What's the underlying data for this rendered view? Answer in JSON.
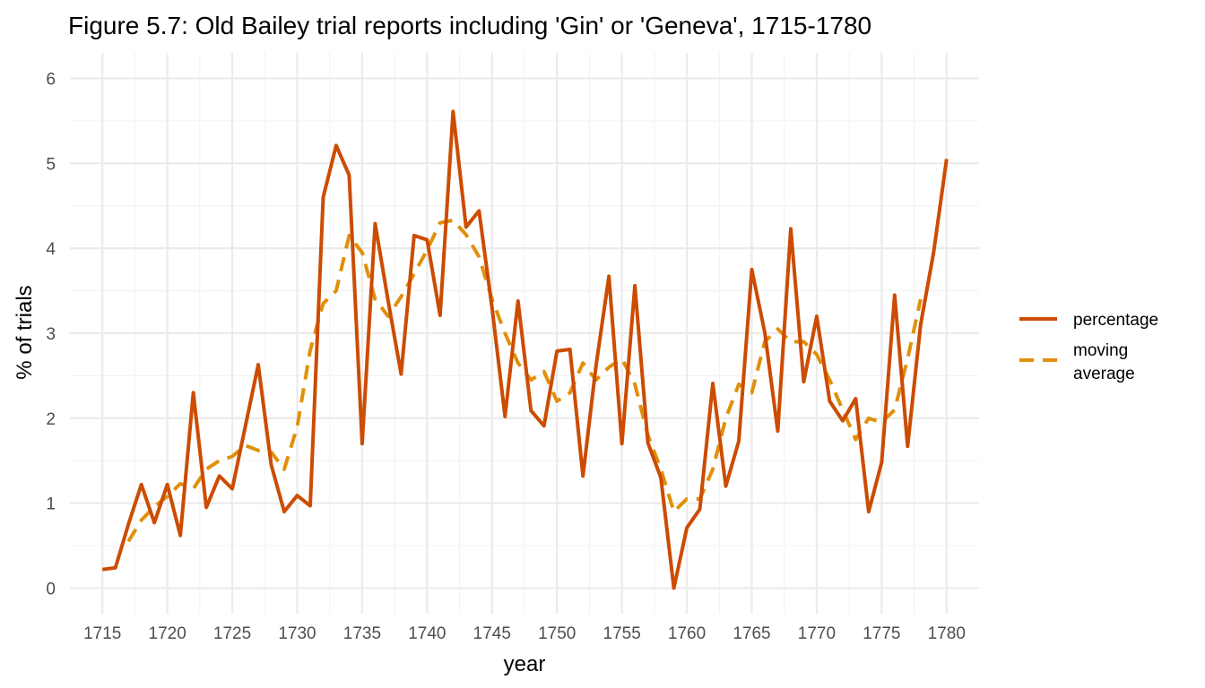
{
  "chart_data": {
    "type": "line",
    "title": "Figure 5.7: Old Bailey trial reports including 'Gin' or 'Geneva', 1715-1780",
    "xlabel": "year",
    "ylabel": "% of trials",
    "xlim": [
      1712.5,
      1782.5
    ],
    "ylim": [
      -0.3,
      6.3
    ],
    "x_ticks": [
      1715,
      1720,
      1725,
      1730,
      1735,
      1740,
      1745,
      1750,
      1755,
      1760,
      1765,
      1770,
      1775,
      1780
    ],
    "y_ticks": [
      0,
      1,
      2,
      3,
      4,
      5,
      6
    ],
    "grid": true,
    "legend_position": "right",
    "colors": {
      "percentage": "#cc4c02",
      "moving_average": "#e0900a"
    },
    "x": [
      1715,
      1716,
      1717,
      1718,
      1719,
      1720,
      1721,
      1722,
      1723,
      1724,
      1725,
      1726,
      1727,
      1728,
      1729,
      1730,
      1731,
      1732,
      1733,
      1734,
      1735,
      1736,
      1737,
      1738,
      1739,
      1740,
      1741,
      1742,
      1743,
      1744,
      1745,
      1746,
      1747,
      1748,
      1749,
      1750,
      1751,
      1752,
      1753,
      1754,
      1755,
      1756,
      1757,
      1758,
      1759,
      1760,
      1761,
      1762,
      1763,
      1764,
      1765,
      1766,
      1767,
      1768,
      1769,
      1770,
      1771,
      1772,
      1773,
      1774,
      1775,
      1776,
      1777,
      1778,
      1779,
      1780
    ],
    "series": [
      {
        "name": "percentage",
        "style": "solid",
        "values": [
          0.22,
          0.24,
          0.75,
          1.22,
          0.77,
          1.22,
          0.62,
          2.3,
          0.95,
          1.32,
          1.17,
          1.9,
          2.63,
          1.45,
          0.9,
          1.09,
          0.97,
          4.6,
          5.21,
          4.86,
          1.7,
          4.29,
          3.38,
          2.52,
          4.15,
          4.1,
          3.21,
          5.61,
          4.25,
          4.44,
          3.3,
          2.02,
          3.38,
          2.09,
          1.91,
          2.79,
          2.81,
          1.32,
          2.61,
          3.67,
          1.7,
          3.56,
          1.71,
          1.3,
          0.0,
          0.71,
          0.93,
          2.41,
          1.2,
          1.73,
          3.75,
          3.01,
          1.85,
          4.23,
          2.43,
          3.2,
          2.2,
          1.97,
          2.23,
          0.9,
          1.48,
          3.45,
          1.67,
          3.1,
          3.95,
          5.05
        ]
      },
      {
        "name": "moving\naverage",
        "style": "dashed",
        "values": [
          null,
          null,
          0.55,
          0.8,
          0.96,
          1.08,
          1.23,
          1.17,
          1.4,
          1.5,
          1.55,
          1.68,
          1.62,
          1.6,
          1.4,
          1.9,
          2.8,
          3.35,
          3.5,
          4.15,
          3.95,
          3.4,
          3.2,
          3.43,
          3.7,
          3.98,
          4.3,
          4.33,
          4.16,
          3.9,
          3.4,
          3.0,
          2.65,
          2.45,
          2.55,
          2.2,
          2.3,
          2.65,
          2.45,
          2.6,
          2.7,
          2.4,
          1.8,
          1.4,
          0.9,
          1.05,
          1.05,
          1.4,
          2.0,
          2.4,
          2.3,
          2.9,
          3.05,
          2.9,
          2.9,
          2.75,
          2.45,
          2.1,
          1.75,
          2.0,
          1.95,
          2.1,
          2.7,
          3.4,
          null,
          null
        ]
      }
    ]
  }
}
